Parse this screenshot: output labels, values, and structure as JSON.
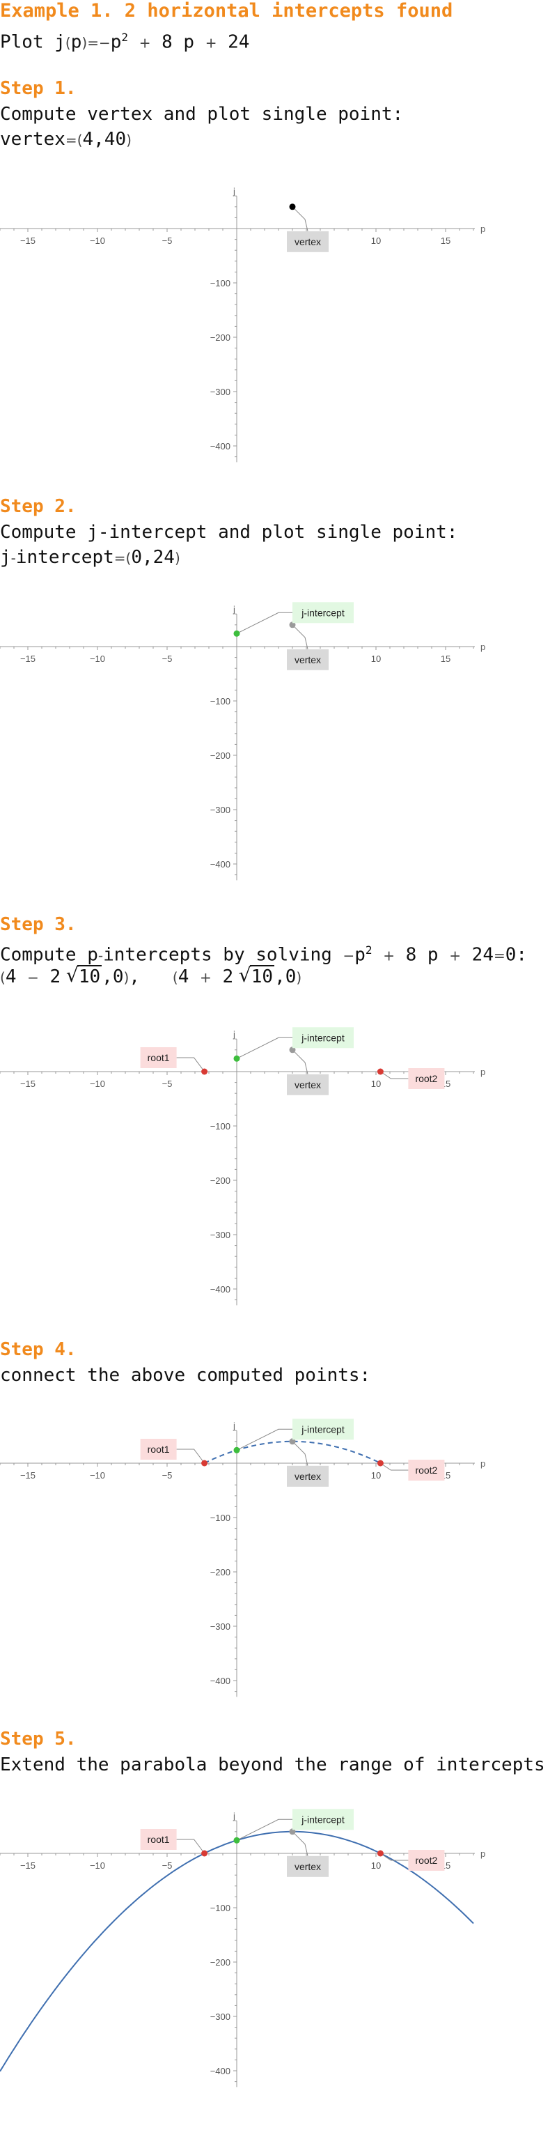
{
  "header": {
    "title": "Example 1. 2 horizontal intercepts found",
    "plot_line": "Plot j(p)=−p² + 8 p + 24"
  },
  "steps": [
    {
      "label": "Step 1.",
      "text": "Compute vertex and plot single point:",
      "result": "vertex=(4,40)"
    },
    {
      "label": "Step 2.",
      "text": "Compute j-intercept and plot single point:",
      "result": "j-intercept=(0,24)"
    },
    {
      "label": "Step 3.",
      "text": "Compute p-intercepts by solving −p² + 8 p + 24=0:",
      "result": "(4 − 2√10,0),   (4 + 2√10,0)"
    },
    {
      "label": "Step 4.",
      "text": "connect the above computed points:",
      "result": ""
    },
    {
      "label": "Step 5.",
      "text": "Extend the parabola beyond the range of intercepts",
      "result": ""
    }
  ],
  "colors": {
    "accent": "#F18A1D",
    "curve": "#3F6FB0",
    "vertex_point_step1": "#000000",
    "vertex_point": "#9A9A9A",
    "j_intercept_point": "#3DBE3D",
    "root_point": "#D83A34",
    "vertex_label_bg": "#D9D9D9",
    "j_label_bg": "#E2F8E2",
    "root_label_bg": "#FBDCDC"
  },
  "chart_data": [
    {
      "type": "scatter",
      "title": "",
      "xlabel": "p",
      "ylabel": "j",
      "xlim": [
        -17,
        17
      ],
      "ylim": [
        -430,
        60
      ],
      "x_ticks": [
        -15,
        -10,
        -5,
        5,
        10,
        15
      ],
      "y_ticks": [
        -100,
        -200,
        -300,
        -400
      ],
      "points": [
        {
          "name": "vertex",
          "x": 4,
          "y": 40
        }
      ],
      "curve": "none"
    },
    {
      "type": "scatter",
      "title": "",
      "xlabel": "p",
      "ylabel": "j",
      "xlim": [
        -17,
        17
      ],
      "ylim": [
        -430,
        60
      ],
      "x_ticks": [
        -15,
        -10,
        -5,
        5,
        10,
        15
      ],
      "y_ticks": [
        -100,
        -200,
        -300,
        -400
      ],
      "points": [
        {
          "name": "vertex",
          "x": 4,
          "y": 40
        },
        {
          "name": "j-intercept",
          "x": 0,
          "y": 24
        }
      ],
      "curve": "none"
    },
    {
      "type": "scatter",
      "title": "",
      "xlabel": "p",
      "ylabel": "j",
      "xlim": [
        -17,
        17
      ],
      "ylim": [
        -430,
        60
      ],
      "x_ticks": [
        -15,
        -10,
        -5,
        5,
        10,
        15
      ],
      "y_ticks": [
        -100,
        -200,
        -300,
        -400
      ],
      "points": [
        {
          "name": "vertex",
          "x": 4,
          "y": 40
        },
        {
          "name": "j-intercept",
          "x": 0,
          "y": 24
        },
        {
          "name": "root1",
          "x": -2.32,
          "y": 0
        },
        {
          "name": "root2",
          "x": 10.32,
          "y": 0
        }
      ],
      "curve": "none"
    },
    {
      "type": "line",
      "title": "",
      "xlabel": "p",
      "ylabel": "j",
      "xlim": [
        -17,
        17
      ],
      "ylim": [
        -430,
        60
      ],
      "x_ticks": [
        -15,
        -10,
        -5,
        5,
        10,
        15
      ],
      "y_ticks": [
        -100,
        -200,
        -300,
        -400
      ],
      "points": [
        {
          "name": "vertex",
          "x": 4,
          "y": 40
        },
        {
          "name": "j-intercept",
          "x": 0,
          "y": 24
        },
        {
          "name": "root1",
          "x": -2.32,
          "y": 0
        },
        {
          "name": "root2",
          "x": 10.32,
          "y": 0
        }
      ],
      "curve": "dashed",
      "curve_x_range": [
        -2.32,
        10.32
      ],
      "coefficients": {
        "a": -1,
        "b": 8,
        "c": 24
      }
    },
    {
      "type": "line",
      "title": "",
      "xlabel": "p",
      "ylabel": "j",
      "xlim": [
        -17,
        17
      ],
      "ylim": [
        -430,
        60
      ],
      "x_ticks": [
        -15,
        -10,
        -5,
        5,
        10,
        15
      ],
      "y_ticks": [
        -100,
        -200,
        -300,
        -400
      ],
      "points": [
        {
          "name": "vertex",
          "x": 4,
          "y": 40
        },
        {
          "name": "j-intercept",
          "x": 0,
          "y": 24
        },
        {
          "name": "root1",
          "x": -2.32,
          "y": 0
        },
        {
          "name": "root2",
          "x": 10.32,
          "y": 0
        }
      ],
      "curve": "solid",
      "curve_x_range": [
        -17,
        17
      ],
      "coefficients": {
        "a": -1,
        "b": 8,
        "c": 24
      }
    }
  ]
}
